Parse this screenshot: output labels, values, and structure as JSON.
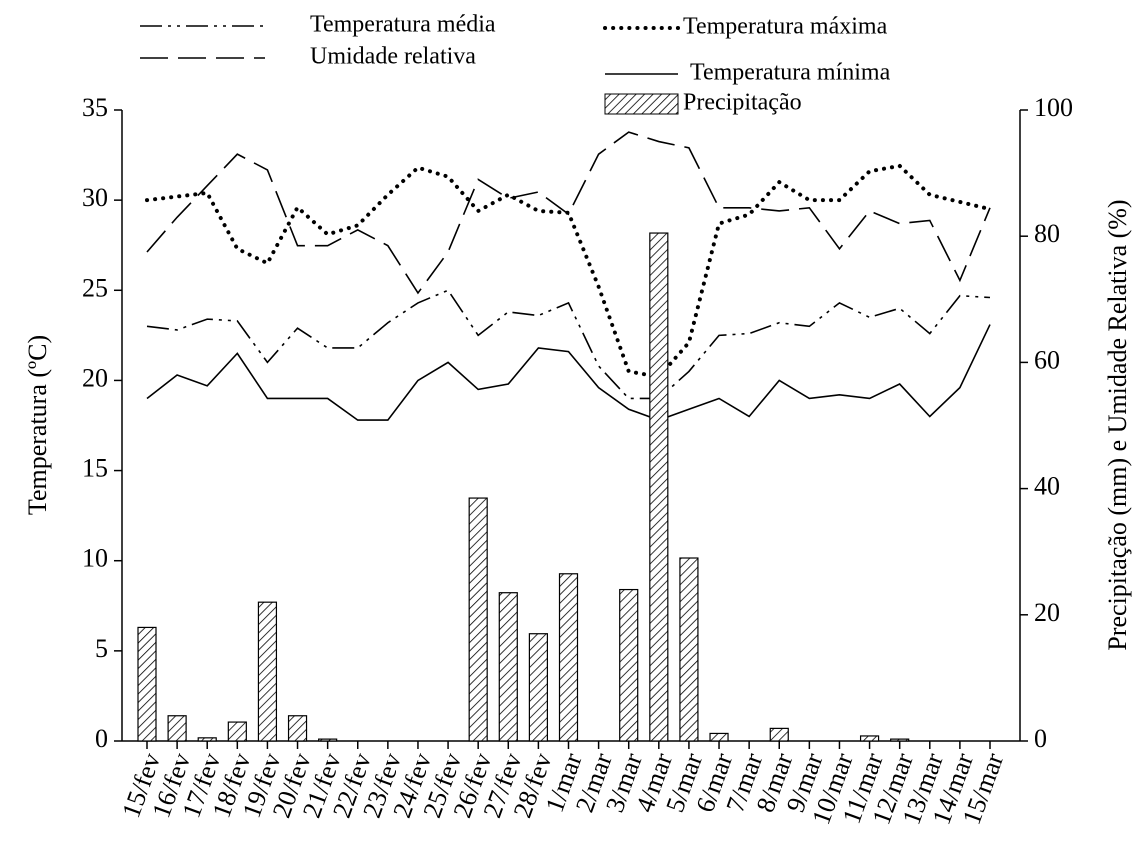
{
  "chart_data": {
    "type": "line",
    "ylabel": "Temperatura (ºC)",
    "y2label": "Precipitação (mm) e Umidade Relativa (%)",
    "categories": [
      "15/fev",
      "16/fev",
      "17/fev",
      "18/fev",
      "19/fev",
      "20/fev",
      "21/fev",
      "22/fev",
      "23/fev",
      "24/fev",
      "25/fev",
      "26/fev",
      "27/fev",
      "28/fev",
      "1/mar",
      "2/mar",
      "3/mar",
      "4/mar",
      "5/mar",
      "6/mar",
      "7/mar",
      "8/mar",
      "9/mar",
      "10/mar",
      "11/mar",
      "12/mar",
      "13/mar",
      "14/mar",
      "15/mar"
    ],
    "ylim": [
      0,
      35
    ],
    "yticks": [
      0,
      5,
      10,
      15,
      20,
      25,
      30,
      35
    ],
    "y2lim": [
      0,
      100
    ],
    "y2ticks": [
      0,
      20,
      40,
      60,
      80,
      100
    ],
    "series": [
      {
        "name": "Temperatura média",
        "color": "#000000",
        "dash": "dashdotdot",
        "values": [
          23,
          22.8,
          23.4,
          23.3,
          21,
          22.9,
          21.8,
          21.8,
          23.2,
          24.3,
          25,
          22.5,
          23.8,
          23.6,
          24.3,
          20.8,
          19,
          19,
          20.5,
          22.5,
          22.6,
          23.2,
          23,
          24.3,
          23.5,
          24,
          22.6,
          24.7,
          24.6
        ]
      },
      {
        "name": "Temperatura máxima",
        "color": "#000000",
        "dash": "dotted",
        "values": [
          30,
          30.2,
          30.4,
          27.3,
          26.5,
          29.6,
          28.1,
          28.6,
          30.3,
          31.8,
          31.3,
          29.4,
          30.3,
          29.4,
          29.3,
          25.2,
          20.5,
          20.2,
          22.1,
          28.7,
          29.2,
          31,
          30,
          30,
          31.6,
          31.9,
          30.3,
          29.9,
          29.5
        ]
      },
      {
        "name": "Umidade relativa",
        "color": "#000000",
        "dash": "longdash",
        "axis": "y2",
        "values": [
          77.5,
          83,
          88,
          93,
          90.5,
          78.5,
          78.5,
          81,
          78.5,
          71,
          77.5,
          89,
          86,
          87,
          83.5,
          93,
          96.5,
          95,
          94,
          84.5,
          84.5,
          84,
          84.5,
          78,
          84,
          82,
          82.5,
          73,
          84.5
        ]
      },
      {
        "name": "Temperatura mínima",
        "color": "#000000",
        "dash": "solid",
        "values": [
          19,
          20.3,
          19.7,
          21.5,
          19,
          19,
          19,
          17.8,
          17.8,
          20,
          21,
          19.5,
          19.8,
          21.8,
          21.6,
          19.6,
          18.4,
          17.8,
          18.4,
          19,
          18,
          20,
          19,
          19.2,
          19,
          19.8,
          18,
          19.6,
          23.1
        ]
      },
      {
        "name": "Precipitação",
        "color": "#000000",
        "type": "bar",
        "axis": "y2",
        "values": [
          18,
          4,
          0.5,
          3,
          22,
          4,
          0.3,
          0,
          0,
          0,
          0,
          38.5,
          23.5,
          17,
          26.5,
          0,
          24,
          80.5,
          29,
          1.2,
          0,
          2,
          0,
          0,
          0.8,
          0.3,
          0,
          0,
          0
        ]
      }
    ]
  }
}
